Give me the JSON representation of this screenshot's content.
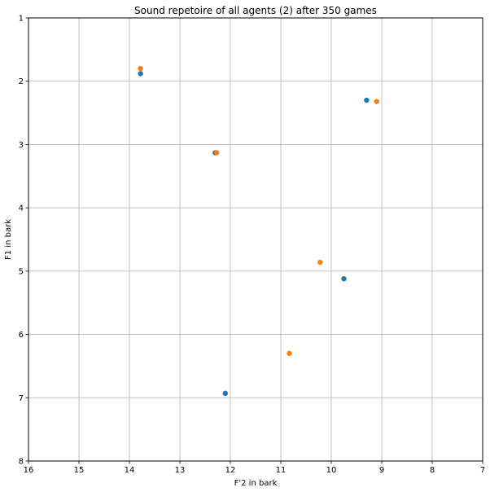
{
  "chart_data": {
    "type": "scatter",
    "title": "Sound repetoire of all agents (2) after 350 games",
    "xlabel": "F'2 in bark",
    "ylabel": "F1 in bark",
    "xlim": [
      16,
      7
    ],
    "ylim": [
      8,
      1
    ],
    "x_inverted": true,
    "y_inverted": true,
    "xticks": [
      16,
      15,
      14,
      13,
      12,
      11,
      10,
      9,
      8,
      7
    ],
    "yticks": [
      1,
      2,
      3,
      4,
      5,
      6,
      7,
      8
    ],
    "grid": true,
    "series": [
      {
        "color": "#1f77b4",
        "points": [
          {
            "x": 13.78,
            "y": 1.88
          },
          {
            "x": 9.3,
            "y": 2.3
          },
          {
            "x": 12.3,
            "y": 3.13
          },
          {
            "x": 9.75,
            "y": 5.12
          },
          {
            "x": 12.1,
            "y": 6.93
          }
        ]
      },
      {
        "color": "#ff7f0e",
        "points": [
          {
            "x": 13.78,
            "y": 1.8
          },
          {
            "x": 9.1,
            "y": 2.32
          },
          {
            "x": 12.27,
            "y": 3.13
          },
          {
            "x": 10.22,
            "y": 4.86
          },
          {
            "x": 10.83,
            "y": 6.3
          }
        ]
      }
    ]
  }
}
